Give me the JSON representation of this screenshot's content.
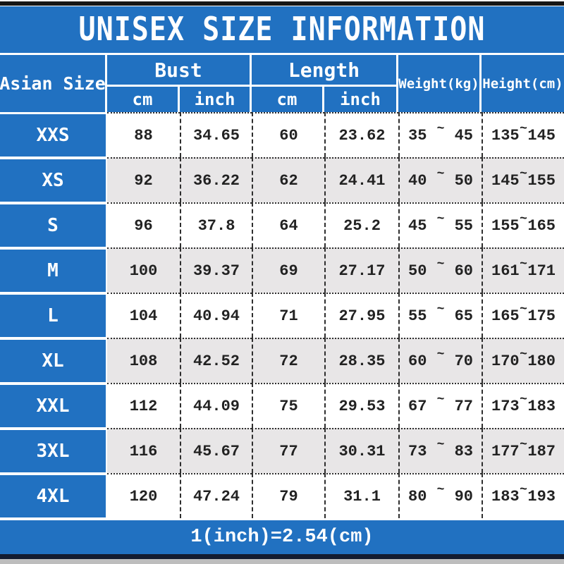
{
  "title": "UNISEX SIZE INFORMATION",
  "table": {
    "headers": {
      "asian_size": "Asian Size",
      "bust": "Bust",
      "length": "Length",
      "weight": "Weight(kg)",
      "height": "Height(cm)",
      "bust_cm": "cm",
      "bust_inch": "inch",
      "length_cm": "cm",
      "length_inch": "inch"
    },
    "range_separator": "~",
    "rows": [
      {
        "size": "XXS",
        "bust_cm": "88",
        "bust_inch": "34.65",
        "length_cm": "60",
        "length_inch": "23.62",
        "weight_min": "35",
        "weight_max": "45",
        "height_min": "135",
        "height_max": "145"
      },
      {
        "size": "XS",
        "bust_cm": "92",
        "bust_inch": "36.22",
        "length_cm": "62",
        "length_inch": "24.41",
        "weight_min": "40",
        "weight_max": "50",
        "height_min": "145",
        "height_max": "155"
      },
      {
        "size": "S",
        "bust_cm": "96",
        "bust_inch": "37.8",
        "length_cm": "64",
        "length_inch": "25.2",
        "weight_min": "45",
        "weight_max": "55",
        "height_min": "155",
        "height_max": "165"
      },
      {
        "size": "M",
        "bust_cm": "100",
        "bust_inch": "39.37",
        "length_cm": "69",
        "length_inch": "27.17",
        "weight_min": "50",
        "weight_max": "60",
        "height_min": "161",
        "height_max": "171"
      },
      {
        "size": "L",
        "bust_cm": "104",
        "bust_inch": "40.94",
        "length_cm": "71",
        "length_inch": "27.95",
        "weight_min": "55",
        "weight_max": "65",
        "height_min": "165",
        "height_max": "175"
      },
      {
        "size": "XL",
        "bust_cm": "108",
        "bust_inch": "42.52",
        "length_cm": "72",
        "length_inch": "28.35",
        "weight_min": "60",
        "weight_max": "70",
        "height_min": "170",
        "height_max": "180"
      },
      {
        "size": "XXL",
        "bust_cm": "112",
        "bust_inch": "44.09",
        "length_cm": "75",
        "length_inch": "29.53",
        "weight_min": "67",
        "weight_max": "77",
        "height_min": "173",
        "height_max": "183"
      },
      {
        "size": "3XL",
        "bust_cm": "116",
        "bust_inch": "45.67",
        "length_cm": "77",
        "length_inch": "30.31",
        "weight_min": "73",
        "weight_max": "83",
        "height_min": "177",
        "height_max": "187"
      },
      {
        "size": "4XL",
        "bust_cm": "120",
        "bust_inch": "47.24",
        "length_cm": "79",
        "length_inch": "31.1",
        "weight_min": "80",
        "weight_max": "90",
        "height_min": "183",
        "height_max": "193"
      }
    ]
  },
  "footer": {
    "note": "1(inch)=2.54(cm)"
  },
  "colors": {
    "accent_blue": "#2171c1",
    "row_stripe": "#e8e6e7",
    "grid_line": "#2e2e2e",
    "top_bar": "#161616",
    "bottom_bar": "#131c30",
    "bottom_strip": "#bdbdbd",
    "text_dark": "#222222",
    "header_text": "#ffffff"
  }
}
